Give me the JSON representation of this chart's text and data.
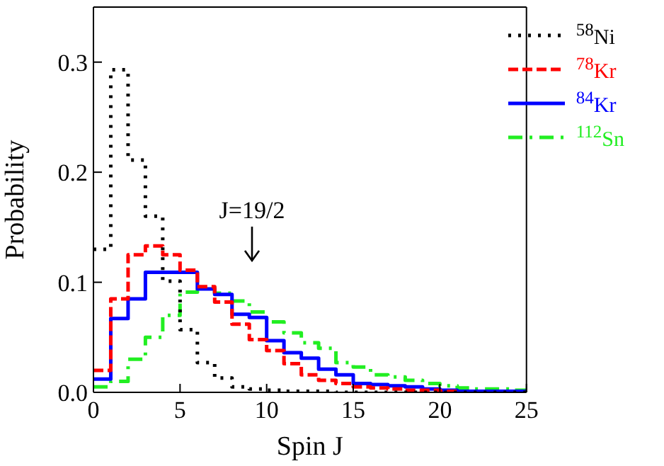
{
  "chart_data": {
    "type": "step",
    "xlabel": "Spin J",
    "ylabel": "Probability",
    "x": [
      0,
      1,
      2,
      3,
      4,
      5,
      6,
      7,
      8,
      9,
      10,
      11,
      12,
      13,
      14,
      15,
      16,
      17,
      18,
      19,
      20,
      21,
      22,
      23,
      24,
      25
    ],
    "series": [
      {
        "name": "$^{58}$Ni",
        "color": "#000000",
        "line_style": "dotted",
        "values": [
          0.13,
          0.293,
          0.211,
          0.16,
          0.101,
          0.057,
          0.027,
          0.013,
          0.005,
          0.003,
          0.002,
          0.001,
          0.001,
          0.001,
          0,
          0,
          0,
          0,
          0,
          0,
          0,
          0,
          0,
          0,
          0,
          0
        ]
      },
      {
        "name": "$^{78}$Kr",
        "color": "#ff0000",
        "line_style": "dashed",
        "values": [
          0.02,
          0.085,
          0.125,
          0.133,
          0.125,
          0.111,
          0.096,
          0.082,
          0.062,
          0.048,
          0.038,
          0.026,
          0.016,
          0.011,
          0.008,
          0.005,
          0.004,
          0.003,
          0.002,
          0.002,
          0.001,
          0.001,
          null,
          null,
          null,
          null
        ]
      },
      {
        "name": "$^{84}$Kr",
        "color": "#0000ff",
        "line_style": "solid",
        "values": [
          0.012,
          0.067,
          0.085,
          0.109,
          0.109,
          0.109,
          0.094,
          0.089,
          0.071,
          0.068,
          0.047,
          0.036,
          0.031,
          0.021,
          0.016,
          0.008,
          0.007,
          0.006,
          0.005,
          0.003,
          0.002,
          0.001,
          0.001,
          0.001,
          0.001,
          0
        ]
      },
      {
        "name": "$^{112}$Sn",
        "color": "#22ee22",
        "line_style": "dashdot",
        "values": [
          0.005,
          0.01,
          0.03,
          0.05,
          0.07,
          0.091,
          0.095,
          0.09,
          0.083,
          0.073,
          0.064,
          0.054,
          0.045,
          0.04,
          0.027,
          0.023,
          0.016,
          0.014,
          0.011,
          0.008,
          0.006,
          0.004,
          0.003,
          0.003,
          0.002,
          0
        ]
      }
    ],
    "xlim": [
      0,
      25
    ],
    "xticks": [
      0,
      5,
      10,
      15,
      20,
      25
    ],
    "ylim": [
      0,
      0.35
    ],
    "yticks": [
      {
        "value": 0,
        "label": "0.0"
      },
      {
        "value": 0.1,
        "label": "0.1"
      },
      {
        "value": 0.2,
        "label": "0.2"
      },
      {
        "value": 0.3,
        "label": "0.3"
      }
    ],
    "annotations": [
      "J=19/2"
    ],
    "legend": "top right",
    "grid": false
  }
}
